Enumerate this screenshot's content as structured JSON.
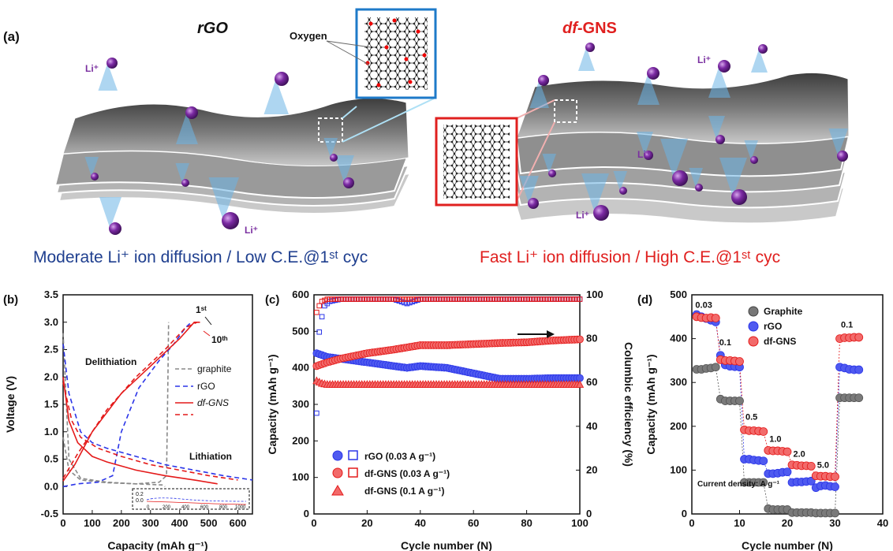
{
  "panel_a": {
    "label": "(a)",
    "left_title": "rGO",
    "right_title_italic": "df",
    "right_title_rest": "-GNS",
    "oxygen_label": "Oxygen",
    "li_label": "Li⁺",
    "left_caption": "Moderate Li⁺ ion diffusion / Low C.E.@1ˢᵗ cyc",
    "right_caption": "Fast Li⁺ ion diffusion / High C.E.@1ˢᵗ cyc",
    "colors": {
      "left_caption": "#1f3f8f",
      "right_caption": "#e0201f",
      "ion": "#7a2fa0",
      "glow": "#6bb5e6"
    }
  },
  "chart_data": [
    {
      "panel": "(b)",
      "type": "line",
      "xlabel": "Capacity (mAh g⁻¹)",
      "ylabel": "Voltage (V)",
      "xlim": [
        0,
        650
      ],
      "ylim": [
        -0.5,
        3.5
      ],
      "xticks": [
        "0",
        "100",
        "200",
        "300",
        "400",
        "500",
        "600"
      ],
      "yticks": [
        "-0.5",
        "0.0",
        "0.5",
        "1.0",
        "1.5",
        "2.0",
        "2.5",
        "3.0",
        "3.5"
      ],
      "annotations": {
        "first": "1ˢᵗ",
        "tenth": "10ᵗʰ",
        "delith": "Delithiation",
        "lith": "Lithiation"
      },
      "legend": [
        "graphite",
        "rGO",
        "df-GNS",
        ""
      ],
      "inset_yticks": [
        "0.2",
        "0.0"
      ],
      "inset_xticks": [
        "0",
        "200",
        "400",
        "600",
        "800",
        "1000"
      ],
      "series": [
        {
          "name": "graphite",
          "color": "#888888",
          "dash": "5,3",
          "x": [
            0,
            20,
            60,
            150,
            250,
            330,
            355,
            360,
            362
          ],
          "y": [
            0.9,
            0.3,
            0.12,
            0.07,
            0.05,
            0.08,
            0.2,
            2.0,
            3.0
          ]
        },
        {
          "name": "graphite",
          "color": "#888888",
          "dash": "5,3",
          "x": [
            0,
            20,
            60,
            150,
            250,
            340,
            350
          ],
          "y": [
            2.8,
            0.5,
            0.15,
            0.08,
            0.05,
            0.03,
            0.0
          ]
        },
        {
          "name": "rGO",
          "color": "#2b35e8",
          "dash": "6,4",
          "x": [
            0,
            20,
            60,
            100,
            150,
            250,
            350,
            450,
            550,
            650
          ],
          "y": [
            2.6,
            1.7,
            1.0,
            0.8,
            0.7,
            0.55,
            0.4,
            0.3,
            0.2,
            0.12
          ]
        },
        {
          "name": "rGO",
          "color": "#2b35e8",
          "dash": "6,4",
          "x": [
            0,
            50,
            120,
            170,
            200,
            260,
            330,
            380,
            420,
            440
          ],
          "y": [
            0.0,
            0.05,
            0.08,
            0.2,
            1.0,
            1.8,
            2.3,
            2.6,
            2.9,
            3.0
          ]
        },
        {
          "name": "df-GNS",
          "color": "#e41a1a",
          "dash": "",
          "x": [
            0,
            20,
            50,
            100,
            150,
            250,
            350,
            450,
            530
          ],
          "y": [
            2.0,
            1.2,
            0.8,
            0.55,
            0.45,
            0.3,
            0.2,
            0.12,
            0.05
          ]
        },
        {
          "name": "df-GNS",
          "color": "#e41a1a",
          "dash": "",
          "x": [
            0,
            40,
            100,
            200,
            300,
            400,
            450,
            470
          ],
          "y": [
            0.1,
            0.4,
            1.0,
            1.7,
            2.2,
            2.7,
            3.0,
            3.0
          ]
        },
        {
          "name": "",
          "color": "#e41a1a",
          "dash": "6,4",
          "x": [
            0,
            30,
            60,
            120,
            200,
            300,
            400,
            500,
            600
          ],
          "y": [
            1.9,
            1.2,
            0.9,
            0.7,
            0.55,
            0.4,
            0.3,
            0.2,
            0.12
          ]
        },
        {
          "name": "",
          "color": "#e41a1a",
          "dash": "6,4",
          "x": [
            0,
            50,
            150,
            250,
            350,
            420,
            460
          ],
          "y": [
            0.15,
            0.6,
            1.4,
            2.0,
            2.5,
            2.9,
            3.0
          ]
        }
      ]
    },
    {
      "panel": "(c)",
      "type": "scatter",
      "xlabel": "Cycle number (N)",
      "ylabel": "Capacity (mAh g⁻¹)",
      "ylabel_right": "Columbic efficiency (%)",
      "xlim": [
        0,
        100
      ],
      "ylim": [
        0,
        600
      ],
      "ylim_right": [
        0,
        100
      ],
      "xticks": [
        "0",
        "20",
        "40",
        "60",
        "80",
        "100"
      ],
      "yticks": [
        "0",
        "100",
        "200",
        "300",
        "400",
        "500",
        "600"
      ],
      "yticks_right": [
        "0",
        "20",
        "40",
        "60",
        "80",
        "100"
      ],
      "legend": [
        "rGO (0.03 A g⁻¹)",
        "df-GNS (0.03 A g⁻¹)",
        "df-GNS (0.1 A g⁻¹)"
      ],
      "series": [
        {
          "name": "rGO (0.03 A g⁻¹)",
          "color": "#2b35e8",
          "marker": "circle",
          "axis": "left",
          "x": [
            1,
            5,
            10,
            20,
            30,
            35,
            40,
            50,
            60,
            70,
            80,
            90,
            100
          ],
          "y": [
            440,
            430,
            425,
            415,
            405,
            400,
            405,
            400,
            385,
            370,
            370,
            372,
            372
          ]
        },
        {
          "name": "df-GNS (0.03 A g⁻¹)",
          "color": "#e41a1a",
          "marker": "circle",
          "axis": "left",
          "x": [
            1,
            5,
            10,
            20,
            30,
            40,
            50,
            60,
            70,
            80,
            90,
            100
          ],
          "y": [
            405,
            415,
            425,
            440,
            450,
            462,
            462,
            465,
            468,
            470,
            475,
            478
          ]
        },
        {
          "name": "df-GNS (0.1 A g⁻¹)",
          "color": "#e41a1a",
          "marker": "triangle",
          "axis": "left",
          "x": [
            1,
            3,
            5,
            10,
            20,
            30,
            40,
            50,
            60,
            70,
            80,
            90,
            100
          ],
          "y": [
            365,
            358,
            355,
            355,
            355,
            355,
            355,
            355,
            355,
            355,
            355,
            355,
            355
          ]
        },
        {
          "name": "rGO CE",
          "color": "#2b35e8",
          "marker": "square",
          "axis": "right",
          "x": [
            1,
            2,
            3,
            4,
            6,
            10,
            20,
            30,
            35,
            40,
            50,
            60,
            70,
            80,
            90,
            100
          ],
          "y": [
            46,
            83,
            90,
            95,
            97,
            98,
            98,
            98,
            96,
            98,
            98,
            98,
            98,
            98,
            98,
            98
          ]
        },
        {
          "name": "df-GNS CE",
          "color": "#e41a1a",
          "marker": "square",
          "axis": "right",
          "x": [
            1,
            2,
            3,
            5,
            10,
            20,
            30,
            40,
            50,
            60,
            70,
            80,
            90,
            100
          ],
          "y": [
            92,
            95,
            97,
            98,
            98,
            98,
            98,
            98,
            98,
            98,
            98,
            98,
            98,
            98
          ]
        }
      ]
    },
    {
      "panel": "(d)",
      "type": "scatter",
      "xlabel": "Cycle number (N)",
      "ylabel": "Capacity (mAh g⁻¹)",
      "xlim": [
        0,
        40
      ],
      "ylim": [
        0,
        500
      ],
      "xticks": [
        "0",
        "10",
        "20",
        "30",
        "40"
      ],
      "yticks": [
        "0",
        "100",
        "200",
        "300",
        "400",
        "500"
      ],
      "legend": [
        "Graphite",
        "rGO",
        "df-GNS"
      ],
      "note": "Current density: A g⁻¹",
      "rate_labels": [
        {
          "text": "0.03",
          "x": 2.5,
          "y": 470
        },
        {
          "text": "0.1",
          "x": 7,
          "y": 385
        },
        {
          "text": "0.5",
          "x": 12.5,
          "y": 215
        },
        {
          "text": "1.0",
          "x": 17.5,
          "y": 165
        },
        {
          "text": "2.0",
          "x": 22.5,
          "y": 130
        },
        {
          "text": "5.0",
          "x": 27.5,
          "y": 105
        },
        {
          "text": "0.1",
          "x": 32.5,
          "y": 425
        }
      ],
      "series": [
        {
          "name": "Graphite",
          "color": "#555555",
          "x": [
            1,
            2,
            3,
            4,
            5,
            6,
            7,
            8,
            9,
            10,
            11,
            12,
            13,
            14,
            15,
            16,
            17,
            18,
            19,
            20,
            21,
            22,
            23,
            24,
            25,
            26,
            27,
            28,
            29,
            30,
            31,
            32,
            33,
            34,
            35
          ],
          "y": [
            330,
            330,
            332,
            333,
            335,
            262,
            258,
            258,
            258,
            258,
            72,
            72,
            72,
            72,
            72,
            12,
            10,
            10,
            10,
            10,
            3,
            3,
            3,
            3,
            3,
            2,
            2,
            2,
            2,
            2,
            265,
            265,
            265,
            265,
            265
          ]
        },
        {
          "name": "rGO",
          "color": "#2b35e8",
          "x": [
            1,
            2,
            3,
            4,
            5,
            6,
            7,
            8,
            9,
            10,
            11,
            12,
            13,
            14,
            15,
            16,
            17,
            18,
            19,
            20,
            21,
            22,
            23,
            24,
            25,
            26,
            27,
            28,
            29,
            30,
            31,
            32,
            33,
            34,
            35
          ],
          "y": [
            455,
            450,
            446,
            442,
            438,
            362,
            340,
            337,
            336,
            335,
            125,
            125,
            123,
            122,
            121,
            92,
            92,
            93,
            95,
            96,
            72,
            73,
            73,
            74,
            75,
            60,
            64,
            65,
            63,
            62,
            335,
            333,
            330,
            329,
            329
          ]
        },
        {
          "name": "df-GNS",
          "color": "#e41a1a",
          "x": [
            1,
            2,
            3,
            4,
            5,
            6,
            7,
            8,
            9,
            10,
            11,
            12,
            13,
            14,
            15,
            16,
            17,
            18,
            19,
            20,
            21,
            22,
            23,
            24,
            25,
            26,
            27,
            28,
            29,
            30,
            31,
            32,
            33,
            34,
            35
          ],
          "y": [
            450,
            448,
            447,
            448,
            447,
            352,
            350,
            350,
            349,
            348,
            192,
            190,
            190,
            189,
            188,
            145,
            144,
            144,
            143,
            142,
            112,
            111,
            110,
            110,
            109,
            87,
            86,
            86,
            85,
            85,
            400,
            402,
            402,
            403,
            403
          ]
        }
      ]
    }
  ]
}
